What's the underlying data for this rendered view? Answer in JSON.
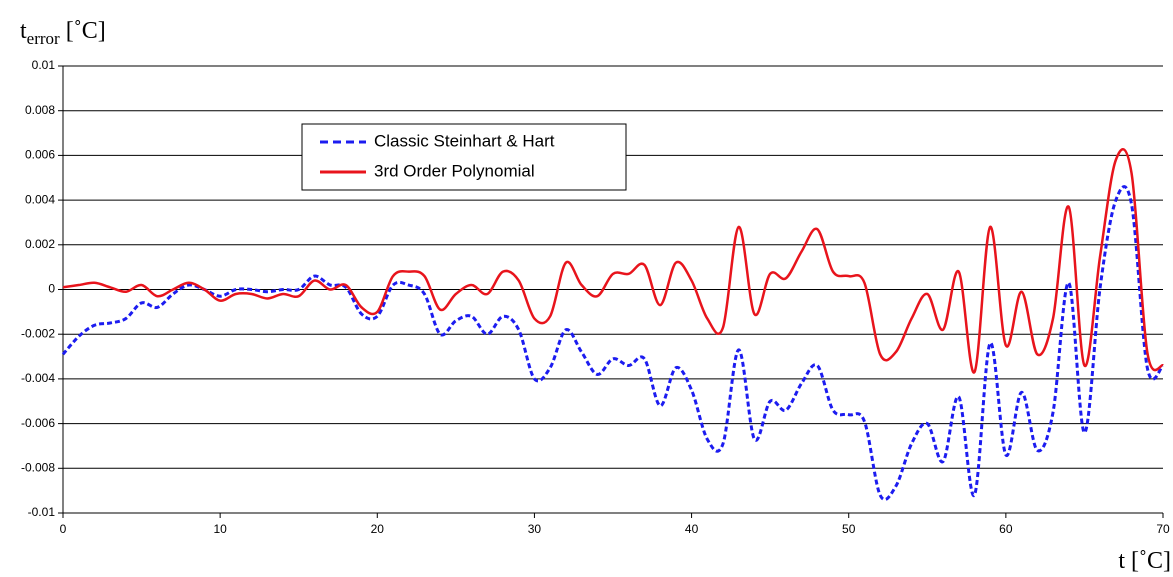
{
  "chart_data": {
    "type": "line",
    "ylabel": {
      "main": "t",
      "sub": "error",
      "unit": "[˚C]"
    },
    "xlabel": "t [˚C]",
    "x": [
      0,
      1,
      2,
      3,
      4,
      5,
      6,
      7,
      8,
      9,
      10,
      11,
      12,
      13,
      14,
      15,
      16,
      17,
      18,
      19,
      20,
      21,
      22,
      23,
      24,
      25,
      26,
      27,
      28,
      29,
      30,
      31,
      32,
      33,
      34,
      35,
      36,
      37,
      38,
      39,
      40,
      41,
      42,
      43,
      44,
      45,
      46,
      47,
      48,
      49,
      50,
      51,
      52,
      53,
      54,
      55,
      56,
      57,
      58,
      59,
      60,
      61,
      62,
      63,
      64,
      65,
      66,
      67,
      68,
      69,
      70
    ],
    "series": [
      {
        "name": "Classic Steinhart & Hart",
        "color": "#1c1cf0",
        "dash": true,
        "values": [
          -0.0029,
          -0.0021,
          -0.0016,
          -0.0015,
          -0.0013,
          -0.0006,
          -0.0008,
          -0.0002,
          0.0002,
          0,
          -0.0003,
          0,
          0,
          -0.0001,
          0,
          0,
          0.0006,
          0.0002,
          0.0001,
          -0.0011,
          -0.0012,
          0.0002,
          0.0002,
          -0.0002,
          -0.002,
          -0.0014,
          -0.0012,
          -0.002,
          -0.0012,
          -0.0018,
          -0.004,
          -0.0035,
          -0.0018,
          -0.0028,
          -0.0038,
          -0.0031,
          -0.0034,
          -0.0031,
          -0.0052,
          -0.0035,
          -0.0045,
          -0.0067,
          -0.0069,
          -0.0027,
          -0.0067,
          -0.005,
          -0.0054,
          -0.0042,
          -0.0034,
          -0.0054,
          -0.0056,
          -0.0059,
          -0.0092,
          -0.0088,
          -0.0069,
          -0.006,
          -0.0077,
          -0.0048,
          -0.0092,
          -0.0024,
          -0.0074,
          -0.0046,
          -0.0072,
          -0.0055,
          0.0003,
          -0.0064,
          0.0001,
          0.004,
          0.0038,
          -0.0035,
          -0.0034
        ]
      },
      {
        "name": "3rd Order Polynomial",
        "color": "#e8141c",
        "dash": false,
        "values": [
          0.0001,
          0.0002,
          0.0003,
          0.0001,
          -0.0001,
          0.0002,
          -0.0003,
          0,
          0.0003,
          0,
          -0.0005,
          -0.0002,
          -0.0002,
          -0.0004,
          -0.0002,
          -0.0003,
          0.0004,
          0,
          0.0002,
          -0.0008,
          -0.001,
          0.0006,
          0.0008,
          0.0006,
          -0.0009,
          -0.0002,
          0.0002,
          -0.0002,
          0.0008,
          0.0004,
          -0.0013,
          -0.0012,
          0.0012,
          0.0002,
          -0.0003,
          0.0007,
          0.0007,
          0.0011,
          -0.0007,
          0.0012,
          0.0004,
          -0.0013,
          -0.0017,
          0.0028,
          -0.0011,
          0.0007,
          0.0005,
          0.0017,
          0.0027,
          0.0008,
          0.0006,
          0.0003,
          -0.0029,
          -0.0028,
          -0.0013,
          -0.0002,
          -0.0018,
          0.0008,
          -0.0037,
          0.0028,
          -0.0025,
          -0.0001,
          -0.0029,
          -0.0013,
          0.0037,
          -0.0034,
          0.0015,
          0.0058,
          0.0052,
          -0.0028,
          -0.0034
        ]
      }
    ],
    "xlim": [
      0,
      70
    ],
    "xticks": [
      0,
      10,
      20,
      30,
      40,
      50,
      60,
      70
    ],
    "ylim": [
      -0.01,
      0.01
    ],
    "yticks": [
      -0.01,
      -0.008,
      -0.006,
      -0.004,
      -0.002,
      0,
      0.002,
      0.004,
      0.006,
      0.008,
      0.01
    ],
    "grid": true,
    "legend": "upper left"
  }
}
